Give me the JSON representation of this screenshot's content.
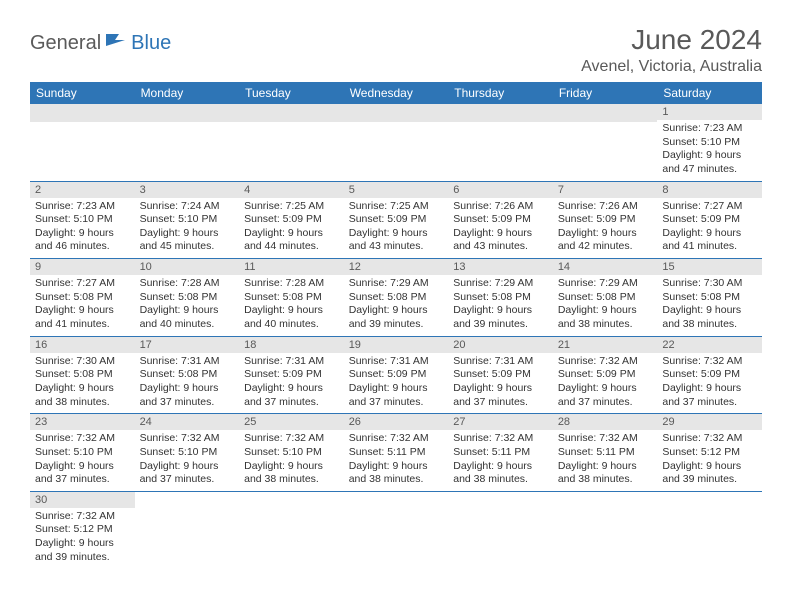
{
  "logo": {
    "part1": "General",
    "part2": "Blue"
  },
  "title": "June 2024",
  "subtitle": "Avenel, Victoria, Australia",
  "colors": {
    "header_bg": "#2e75b6",
    "header_text": "#ffffff",
    "daynum_bg": "#e6e6e6",
    "text": "#333333",
    "title_color": "#595959"
  },
  "weekdays": [
    "Sunday",
    "Monday",
    "Tuesday",
    "Wednesday",
    "Thursday",
    "Friday",
    "Saturday"
  ],
  "rows": [
    [
      null,
      null,
      null,
      null,
      null,
      null,
      {
        "n": "1",
        "sr": "Sunrise: 7:23 AM",
        "ss": "Sunset: 5:10 PM",
        "d1": "Daylight: 9 hours",
        "d2": "and 47 minutes."
      }
    ],
    [
      {
        "n": "2",
        "sr": "Sunrise: 7:23 AM",
        "ss": "Sunset: 5:10 PM",
        "d1": "Daylight: 9 hours",
        "d2": "and 46 minutes."
      },
      {
        "n": "3",
        "sr": "Sunrise: 7:24 AM",
        "ss": "Sunset: 5:10 PM",
        "d1": "Daylight: 9 hours",
        "d2": "and 45 minutes."
      },
      {
        "n": "4",
        "sr": "Sunrise: 7:25 AM",
        "ss": "Sunset: 5:09 PM",
        "d1": "Daylight: 9 hours",
        "d2": "and 44 minutes."
      },
      {
        "n": "5",
        "sr": "Sunrise: 7:25 AM",
        "ss": "Sunset: 5:09 PM",
        "d1": "Daylight: 9 hours",
        "d2": "and 43 minutes."
      },
      {
        "n": "6",
        "sr": "Sunrise: 7:26 AM",
        "ss": "Sunset: 5:09 PM",
        "d1": "Daylight: 9 hours",
        "d2": "and 43 minutes."
      },
      {
        "n": "7",
        "sr": "Sunrise: 7:26 AM",
        "ss": "Sunset: 5:09 PM",
        "d1": "Daylight: 9 hours",
        "d2": "and 42 minutes."
      },
      {
        "n": "8",
        "sr": "Sunrise: 7:27 AM",
        "ss": "Sunset: 5:09 PM",
        "d1": "Daylight: 9 hours",
        "d2": "and 41 minutes."
      }
    ],
    [
      {
        "n": "9",
        "sr": "Sunrise: 7:27 AM",
        "ss": "Sunset: 5:08 PM",
        "d1": "Daylight: 9 hours",
        "d2": "and 41 minutes."
      },
      {
        "n": "10",
        "sr": "Sunrise: 7:28 AM",
        "ss": "Sunset: 5:08 PM",
        "d1": "Daylight: 9 hours",
        "d2": "and 40 minutes."
      },
      {
        "n": "11",
        "sr": "Sunrise: 7:28 AM",
        "ss": "Sunset: 5:08 PM",
        "d1": "Daylight: 9 hours",
        "d2": "and 40 minutes."
      },
      {
        "n": "12",
        "sr": "Sunrise: 7:29 AM",
        "ss": "Sunset: 5:08 PM",
        "d1": "Daylight: 9 hours",
        "d2": "and 39 minutes."
      },
      {
        "n": "13",
        "sr": "Sunrise: 7:29 AM",
        "ss": "Sunset: 5:08 PM",
        "d1": "Daylight: 9 hours",
        "d2": "and 39 minutes."
      },
      {
        "n": "14",
        "sr": "Sunrise: 7:29 AM",
        "ss": "Sunset: 5:08 PM",
        "d1": "Daylight: 9 hours",
        "d2": "and 38 minutes."
      },
      {
        "n": "15",
        "sr": "Sunrise: 7:30 AM",
        "ss": "Sunset: 5:08 PM",
        "d1": "Daylight: 9 hours",
        "d2": "and 38 minutes."
      }
    ],
    [
      {
        "n": "16",
        "sr": "Sunrise: 7:30 AM",
        "ss": "Sunset: 5:08 PM",
        "d1": "Daylight: 9 hours",
        "d2": "and 38 minutes."
      },
      {
        "n": "17",
        "sr": "Sunrise: 7:31 AM",
        "ss": "Sunset: 5:08 PM",
        "d1": "Daylight: 9 hours",
        "d2": "and 37 minutes."
      },
      {
        "n": "18",
        "sr": "Sunrise: 7:31 AM",
        "ss": "Sunset: 5:09 PM",
        "d1": "Daylight: 9 hours",
        "d2": "and 37 minutes."
      },
      {
        "n": "19",
        "sr": "Sunrise: 7:31 AM",
        "ss": "Sunset: 5:09 PM",
        "d1": "Daylight: 9 hours",
        "d2": "and 37 minutes."
      },
      {
        "n": "20",
        "sr": "Sunrise: 7:31 AM",
        "ss": "Sunset: 5:09 PM",
        "d1": "Daylight: 9 hours",
        "d2": "and 37 minutes."
      },
      {
        "n": "21",
        "sr": "Sunrise: 7:32 AM",
        "ss": "Sunset: 5:09 PM",
        "d1": "Daylight: 9 hours",
        "d2": "and 37 minutes."
      },
      {
        "n": "22",
        "sr": "Sunrise: 7:32 AM",
        "ss": "Sunset: 5:09 PM",
        "d1": "Daylight: 9 hours",
        "d2": "and 37 minutes."
      }
    ],
    [
      {
        "n": "23",
        "sr": "Sunrise: 7:32 AM",
        "ss": "Sunset: 5:10 PM",
        "d1": "Daylight: 9 hours",
        "d2": "and 37 minutes."
      },
      {
        "n": "24",
        "sr": "Sunrise: 7:32 AM",
        "ss": "Sunset: 5:10 PM",
        "d1": "Daylight: 9 hours",
        "d2": "and 37 minutes."
      },
      {
        "n": "25",
        "sr": "Sunrise: 7:32 AM",
        "ss": "Sunset: 5:10 PM",
        "d1": "Daylight: 9 hours",
        "d2": "and 38 minutes."
      },
      {
        "n": "26",
        "sr": "Sunrise: 7:32 AM",
        "ss": "Sunset: 5:11 PM",
        "d1": "Daylight: 9 hours",
        "d2": "and 38 minutes."
      },
      {
        "n": "27",
        "sr": "Sunrise: 7:32 AM",
        "ss": "Sunset: 5:11 PM",
        "d1": "Daylight: 9 hours",
        "d2": "and 38 minutes."
      },
      {
        "n": "28",
        "sr": "Sunrise: 7:32 AM",
        "ss": "Sunset: 5:11 PM",
        "d1": "Daylight: 9 hours",
        "d2": "and 38 minutes."
      },
      {
        "n": "29",
        "sr": "Sunrise: 7:32 AM",
        "ss": "Sunset: 5:12 PM",
        "d1": "Daylight: 9 hours",
        "d2": "and 39 minutes."
      }
    ],
    [
      {
        "n": "30",
        "sr": "Sunrise: 7:32 AM",
        "ss": "Sunset: 5:12 PM",
        "d1": "Daylight: 9 hours",
        "d2": "and 39 minutes."
      },
      null,
      null,
      null,
      null,
      null,
      null
    ]
  ]
}
